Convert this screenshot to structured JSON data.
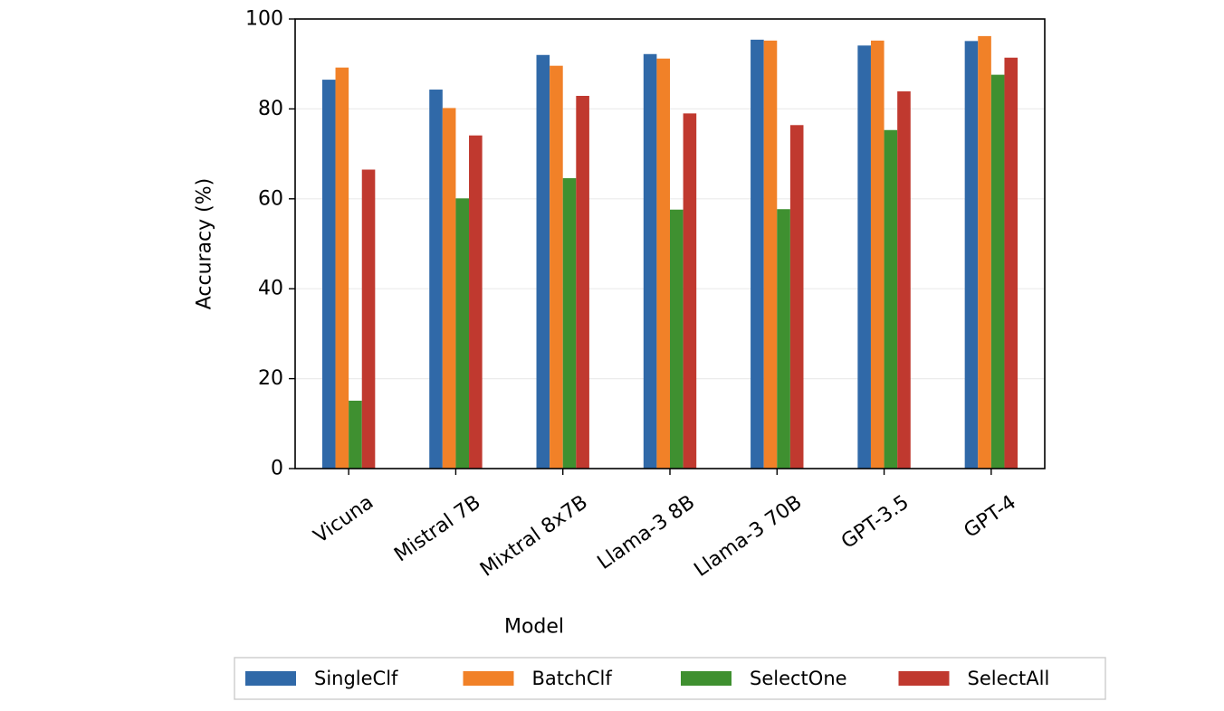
{
  "chart_data": {
    "type": "bar",
    "title": "",
    "xlabel": "Model",
    "ylabel": "Accuracy (%)",
    "ylim": [
      0,
      100
    ],
    "yticks": [
      0,
      20,
      40,
      60,
      80,
      100
    ],
    "grid": "horizontal",
    "legend_position": "bottom",
    "categories": [
      "Vicuna",
      "Mistral 7B",
      "Mixtral 8x7B",
      "Llama-3 8B",
      "Llama-3 70B",
      "GPT-3.5",
      "GPT-4"
    ],
    "series": [
      {
        "name": "SingleClf",
        "color": "#3069a8",
        "values": [
          86.5,
          84.3,
          92.0,
          92.2,
          95.4,
          94.1,
          95.1
        ]
      },
      {
        "name": "BatchClf",
        "color": "#f18128",
        "values": [
          89.2,
          80.2,
          89.6,
          91.2,
          95.2,
          95.2,
          96.2
        ]
      },
      {
        "name": "SelectOne",
        "color": "#3f9030",
        "values": [
          15.1,
          60.1,
          64.6,
          57.6,
          57.7,
          75.3,
          87.6
        ]
      },
      {
        "name": "SelectAll",
        "color": "#c0392f",
        "values": [
          66.5,
          74.1,
          82.9,
          79.0,
          76.4,
          83.9,
          91.4
        ]
      }
    ]
  }
}
